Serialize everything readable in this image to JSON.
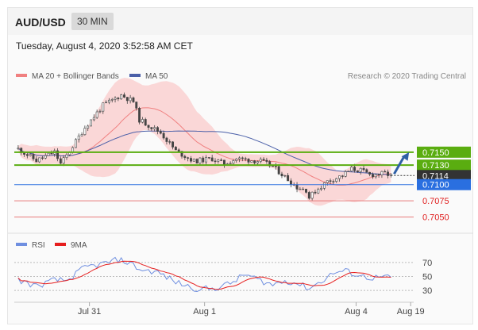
{
  "header": {
    "symbol": "AUD/USD",
    "timeframe": "30 MIN"
  },
  "datetime": "Tuesday, August 4, 2020 3:52:58 AM CET",
  "legend": {
    "bands": "MA 20 + Bollinger Bands",
    "ma50": "MA 50",
    "credit": "Research © 2020 Trading Central",
    "rsi": "RSI",
    "ma9": "9MA"
  },
  "colors": {
    "candle": "#444444",
    "bands": "#f9b9b9",
    "ma20": "#f08080",
    "ma50": "#4a5fa8",
    "resistance": "#5aad10",
    "support": "#2a6fe0",
    "target": "#e87a7a",
    "current": "#333333",
    "arrow": "#2f5fa6",
    "rsi": "#6f8fe0",
    "rsi_ma": "#e61e1e"
  },
  "price_axis": {
    "min": 7030,
    "max": 7250
  },
  "levels": [
    {
      "value": 7150,
      "label": "0.7150",
      "kind": "resistance"
    },
    {
      "value": 7130,
      "label": "0.7130",
      "kind": "resistance"
    },
    {
      "value": 7114,
      "label": "0.7114",
      "kind": "current"
    },
    {
      "value": 7100,
      "label": "0.7100",
      "kind": "support"
    },
    {
      "value": 7075,
      "label": "0.7075",
      "kind": "target"
    },
    {
      "value": 7050,
      "label": "0.7050",
      "kind": "target"
    }
  ],
  "rsi_axis": {
    "min": 20,
    "max": 80,
    "ticks": [
      "70",
      "50",
      "30"
    ],
    "tick_values": [
      70,
      50,
      30
    ]
  },
  "x_axis": {
    "labels": [
      "Jul 31",
      "Aug 1",
      "Aug 4",
      "Aug 19"
    ],
    "positions": [
      24,
      62,
      112,
      130
    ]
  },
  "chart_data": {
    "type": "candlestick",
    "bar_count": 131,
    "anchors": [
      [
        0,
        7155
      ],
      [
        6,
        7137
      ],
      [
        12,
        7150
      ],
      [
        14,
        7132
      ],
      [
        16,
        7145
      ],
      [
        22,
        7188
      ],
      [
        28,
        7222
      ],
      [
        34,
        7238
      ],
      [
        38,
        7228
      ],
      [
        40,
        7200
      ],
      [
        47,
        7180
      ],
      [
        52,
        7152
      ],
      [
        58,
        7136
      ],
      [
        64,
        7140
      ],
      [
        68,
        7132
      ],
      [
        72,
        7140
      ],
      [
        76,
        7138
      ],
      [
        80,
        7136
      ],
      [
        84,
        7128
      ],
      [
        88,
        7112
      ],
      [
        92,
        7096
      ],
      [
        95,
        7092
      ],
      [
        96,
        7080
      ],
      [
        98,
        7090
      ],
      [
        102,
        7105
      ],
      [
        107,
        7114
      ],
      [
        110,
        7124
      ],
      [
        113,
        7122
      ],
      [
        116,
        7115
      ],
      [
        121,
        7117
      ],
      [
        123,
        7114
      ]
    ],
    "projection": {
      "from": [
        123,
        7114
      ],
      "to": [
        130,
        7150
      ]
    },
    "rsi_anchors": [
      [
        0,
        45
      ],
      [
        6,
        36
      ],
      [
        12,
        45
      ],
      [
        16,
        44
      ],
      [
        22,
        63
      ],
      [
        28,
        68
      ],
      [
        33,
        74
      ],
      [
        37,
        69
      ],
      [
        40,
        60
      ],
      [
        46,
        56
      ],
      [
        52,
        42
      ],
      [
        58,
        33
      ],
      [
        64,
        32
      ],
      [
        70,
        40
      ],
      [
        75,
        53
      ],
      [
        80,
        44
      ],
      [
        84,
        38
      ],
      [
        88,
        44
      ],
      [
        92,
        40
      ],
      [
        96,
        33
      ],
      [
        100,
        43
      ],
      [
        104,
        55
      ],
      [
        108,
        58
      ],
      [
        112,
        52
      ],
      [
        116,
        48
      ],
      [
        120,
        49
      ],
      [
        123,
        48
      ]
    ]
  }
}
